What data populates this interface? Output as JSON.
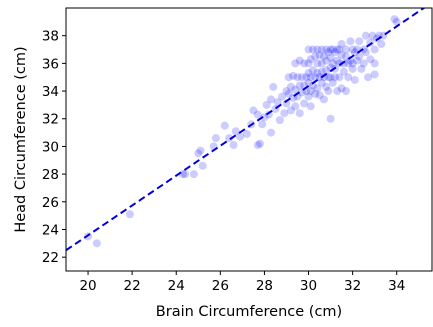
{
  "chart_data": {
    "type": "scatter",
    "title": "",
    "xlabel": "Brain Circumference (cm)",
    "ylabel": "Head Circumference (cm)",
    "xlim": [
      19.0,
      35.6
    ],
    "ylim": [
      21.0,
      40.0
    ],
    "xticks": [
      20,
      22,
      24,
      26,
      28,
      30,
      32,
      34
    ],
    "yticks": [
      22,
      24,
      26,
      28,
      30,
      32,
      34,
      36,
      38
    ],
    "grid": false,
    "legend": "none",
    "point_color": "#0000ff",
    "point_alpha": 0.2,
    "line_color": "#0000dd",
    "points": [
      [
        20.0,
        23.5
      ],
      [
        20.4,
        23.0
      ],
      [
        21.9,
        25.1
      ],
      [
        24.3,
        28.0
      ],
      [
        24.4,
        28.0
      ],
      [
        24.8,
        28.0
      ],
      [
        25.2,
        28.6
      ],
      [
        25.0,
        29.5
      ],
      [
        25.1,
        29.7
      ],
      [
        25.7,
        30.0
      ],
      [
        25.8,
        30.6
      ],
      [
        26.2,
        31.5
      ],
      [
        26.4,
        30.6
      ],
      [
        26.6,
        30.1
      ],
      [
        26.9,
        30.7
      ],
      [
        26.7,
        31.1
      ],
      [
        27.2,
        30.9
      ],
      [
        27.4,
        31.6
      ],
      [
        27.7,
        30.1
      ],
      [
        27.8,
        30.2
      ],
      [
        27.5,
        32.6
      ],
      [
        27.7,
        32.3
      ],
      [
        27.9,
        31.6
      ],
      [
        28.0,
        32.1
      ],
      [
        28.1,
        33.0
      ],
      [
        28.2,
        32.3
      ],
      [
        28.3,
        33.4
      ],
      [
        28.4,
        34.3
      ],
      [
        28.3,
        31.0
      ],
      [
        28.5,
        32.7
      ],
      [
        28.6,
        33.2
      ],
      [
        28.7,
        31.9
      ],
      [
        28.8,
        33.6
      ],
      [
        28.9,
        32.4
      ],
      [
        29.0,
        34.0
      ],
      [
        29.0,
        33.1
      ],
      [
        29.1,
        35.0
      ],
      [
        29.1,
        33.8
      ],
      [
        29.2,
        32.6
      ],
      [
        29.2,
        34.3
      ],
      [
        29.3,
        35.1
      ],
      [
        29.3,
        33.5
      ],
      [
        29.4,
        36.0
      ],
      [
        29.4,
        34.1
      ],
      [
        29.4,
        32.9
      ],
      [
        29.5,
        35.0
      ],
      [
        29.5,
        33.6
      ],
      [
        29.6,
        34.4
      ],
      [
        29.6,
        32.4
      ],
      [
        29.6,
        36.2
      ],
      [
        29.7,
        35.0
      ],
      [
        29.7,
        33.9
      ],
      [
        29.8,
        36.0
      ],
      [
        29.8,
        34.4
      ],
      [
        29.8,
        33.1
      ],
      [
        29.9,
        35.0
      ],
      [
        29.9,
        34.0
      ],
      [
        30.0,
        37.0
      ],
      [
        30.0,
        36.0
      ],
      [
        30.0,
        35.3
      ],
      [
        30.0,
        34.6
      ],
      [
        30.0,
        33.6
      ],
      [
        30.1,
        36.3
      ],
      [
        30.1,
        35.0
      ],
      [
        30.1,
        34.0
      ],
      [
        30.1,
        32.9
      ],
      [
        30.2,
        37.0
      ],
      [
        30.2,
        35.5
      ],
      [
        30.2,
        34.4
      ],
      [
        30.3,
        36.5
      ],
      [
        30.3,
        35.0
      ],
      [
        30.3,
        33.8
      ],
      [
        30.4,
        37.0
      ],
      [
        30.4,
        36.0
      ],
      [
        30.4,
        35.3
      ],
      [
        30.4,
        34.2
      ],
      [
        30.5,
        36.6
      ],
      [
        30.5,
        35.0
      ],
      [
        30.5,
        33.7
      ],
      [
        30.6,
        37.0
      ],
      [
        30.6,
        36.0
      ],
      [
        30.6,
        35.4
      ],
      [
        30.6,
        34.6
      ],
      [
        30.7,
        36.5
      ],
      [
        30.7,
        35.0
      ],
      [
        30.7,
        33.4
      ],
      [
        30.8,
        37.0
      ],
      [
        30.8,
        36.2
      ],
      [
        30.8,
        35.5
      ],
      [
        30.8,
        34.3
      ],
      [
        30.9,
        36.8
      ],
      [
        30.9,
        35.0
      ],
      [
        30.9,
        34.0
      ],
      [
        31.0,
        37.0
      ],
      [
        31.0,
        36.4
      ],
      [
        31.0,
        35.7
      ],
      [
        31.0,
        35.0
      ],
      [
        31.0,
        32.0
      ],
      [
        31.1,
        37.0
      ],
      [
        31.1,
        36.0
      ],
      [
        31.1,
        34.6
      ],
      [
        31.2,
        36.8
      ],
      [
        31.2,
        35.6
      ],
      [
        31.2,
        35.0
      ],
      [
        31.3,
        37.0
      ],
      [
        31.3,
        36.2
      ],
      [
        31.3,
        34.0
      ],
      [
        31.4,
        37.0
      ],
      [
        31.4,
        36.0
      ],
      [
        31.4,
        35.0
      ],
      [
        31.5,
        37.4
      ],
      [
        31.5,
        36.6
      ],
      [
        31.5,
        34.2
      ],
      [
        31.6,
        36.0
      ],
      [
        31.6,
        35.4
      ],
      [
        31.7,
        37.0
      ],
      [
        31.7,
        36.5
      ],
      [
        31.7,
        34.0
      ],
      [
        31.8,
        36.0
      ],
      [
        31.8,
        35.0
      ],
      [
        31.9,
        37.6
      ],
      [
        31.9,
        36.2
      ],
      [
        32.0,
        37.0
      ],
      [
        32.0,
        36.0
      ],
      [
        32.0,
        35.6
      ],
      [
        32.1,
        36.8
      ],
      [
        32.1,
        34.8
      ],
      [
        32.2,
        37.0
      ],
      [
        32.2,
        36.2
      ],
      [
        32.3,
        37.6
      ],
      [
        32.3,
        36.5
      ],
      [
        32.4,
        35.6
      ],
      [
        32.5,
        37.0
      ],
      [
        32.5,
        36.0
      ],
      [
        32.6,
        38.0
      ],
      [
        32.6,
        36.8
      ],
      [
        32.7,
        35.0
      ],
      [
        32.8,
        37.5
      ],
      [
        32.8,
        36.3
      ],
      [
        32.9,
        38.0
      ],
      [
        33.0,
        37.0
      ],
      [
        33.0,
        36.0
      ],
      [
        33.1,
        37.8
      ],
      [
        33.2,
        38.0
      ],
      [
        33.3,
        37.4
      ],
      [
        33.4,
        38.0
      ],
      [
        33.0,
        35.2
      ],
      [
        33.9,
        39.2
      ],
      [
        34.0,
        39.0
      ]
    ],
    "fit_line": {
      "x": [
        19.0,
        35.6
      ],
      "y": [
        22.5,
        40.4
      ]
    }
  }
}
